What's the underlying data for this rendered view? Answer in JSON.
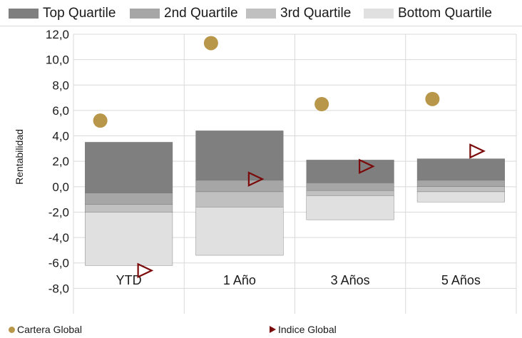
{
  "chart_data": {
    "type": "bar",
    "categories": [
      "YTD",
      "1 Año",
      "3 Años",
      "5 Años"
    ],
    "ylabel": "Rentabilidad",
    "ylim": [
      -10,
      12
    ],
    "yticks": [
      "12,0",
      "10,0",
      "8,0",
      "6,0",
      "4,0",
      "2,0",
      "0,0",
      "-2,0",
      "-4,0",
      "-6,0",
      "-8,0"
    ],
    "ytick_values": [
      12,
      10,
      8,
      6,
      4,
      2,
      0,
      -2,
      -4,
      -6,
      -8
    ],
    "grid": true,
    "quartile_series": [
      {
        "name": "Top Quartile",
        "color": "#7f7f7f",
        "ranges": [
          [
            -0.5,
            3.5
          ],
          [
            0.5,
            4.4
          ],
          [
            0.3,
            2.1
          ],
          [
            0.5,
            2.2
          ]
        ]
      },
      {
        "name": "2nd Quartile",
        "color": "#a6a6a6",
        "ranges": [
          [
            -1.4,
            -0.5
          ],
          [
            -0.4,
            0.5
          ],
          [
            -0.3,
            0.3
          ],
          [
            0.0,
            0.5
          ]
        ]
      },
      {
        "name": "3rd Quartile",
        "color": "#c0c0c0",
        "ranges": [
          [
            -2.0,
            -1.4
          ],
          [
            -1.6,
            -0.4
          ],
          [
            -0.7,
            -0.3
          ],
          [
            -0.4,
            0.0
          ]
        ]
      },
      {
        "name": "Bottom Quartile",
        "color": "#e0e0e0",
        "ranges": [
          [
            -6.2,
            -2.0
          ],
          [
            -5.4,
            -1.6
          ],
          [
            -2.6,
            -0.7
          ],
          [
            -1.2,
            -0.4
          ]
        ]
      }
    ],
    "point_series": [
      {
        "name": "Cartera Global",
        "marker": "circle",
        "color": "#b8964a",
        "values": [
          5.2,
          11.3,
          6.5,
          6.9
        ]
      },
      {
        "name": "Indice Global",
        "marker": "triangle",
        "color": "#7b0a0a",
        "values": [
          -6.6,
          0.6,
          1.6,
          2.8
        ]
      }
    ]
  }
}
